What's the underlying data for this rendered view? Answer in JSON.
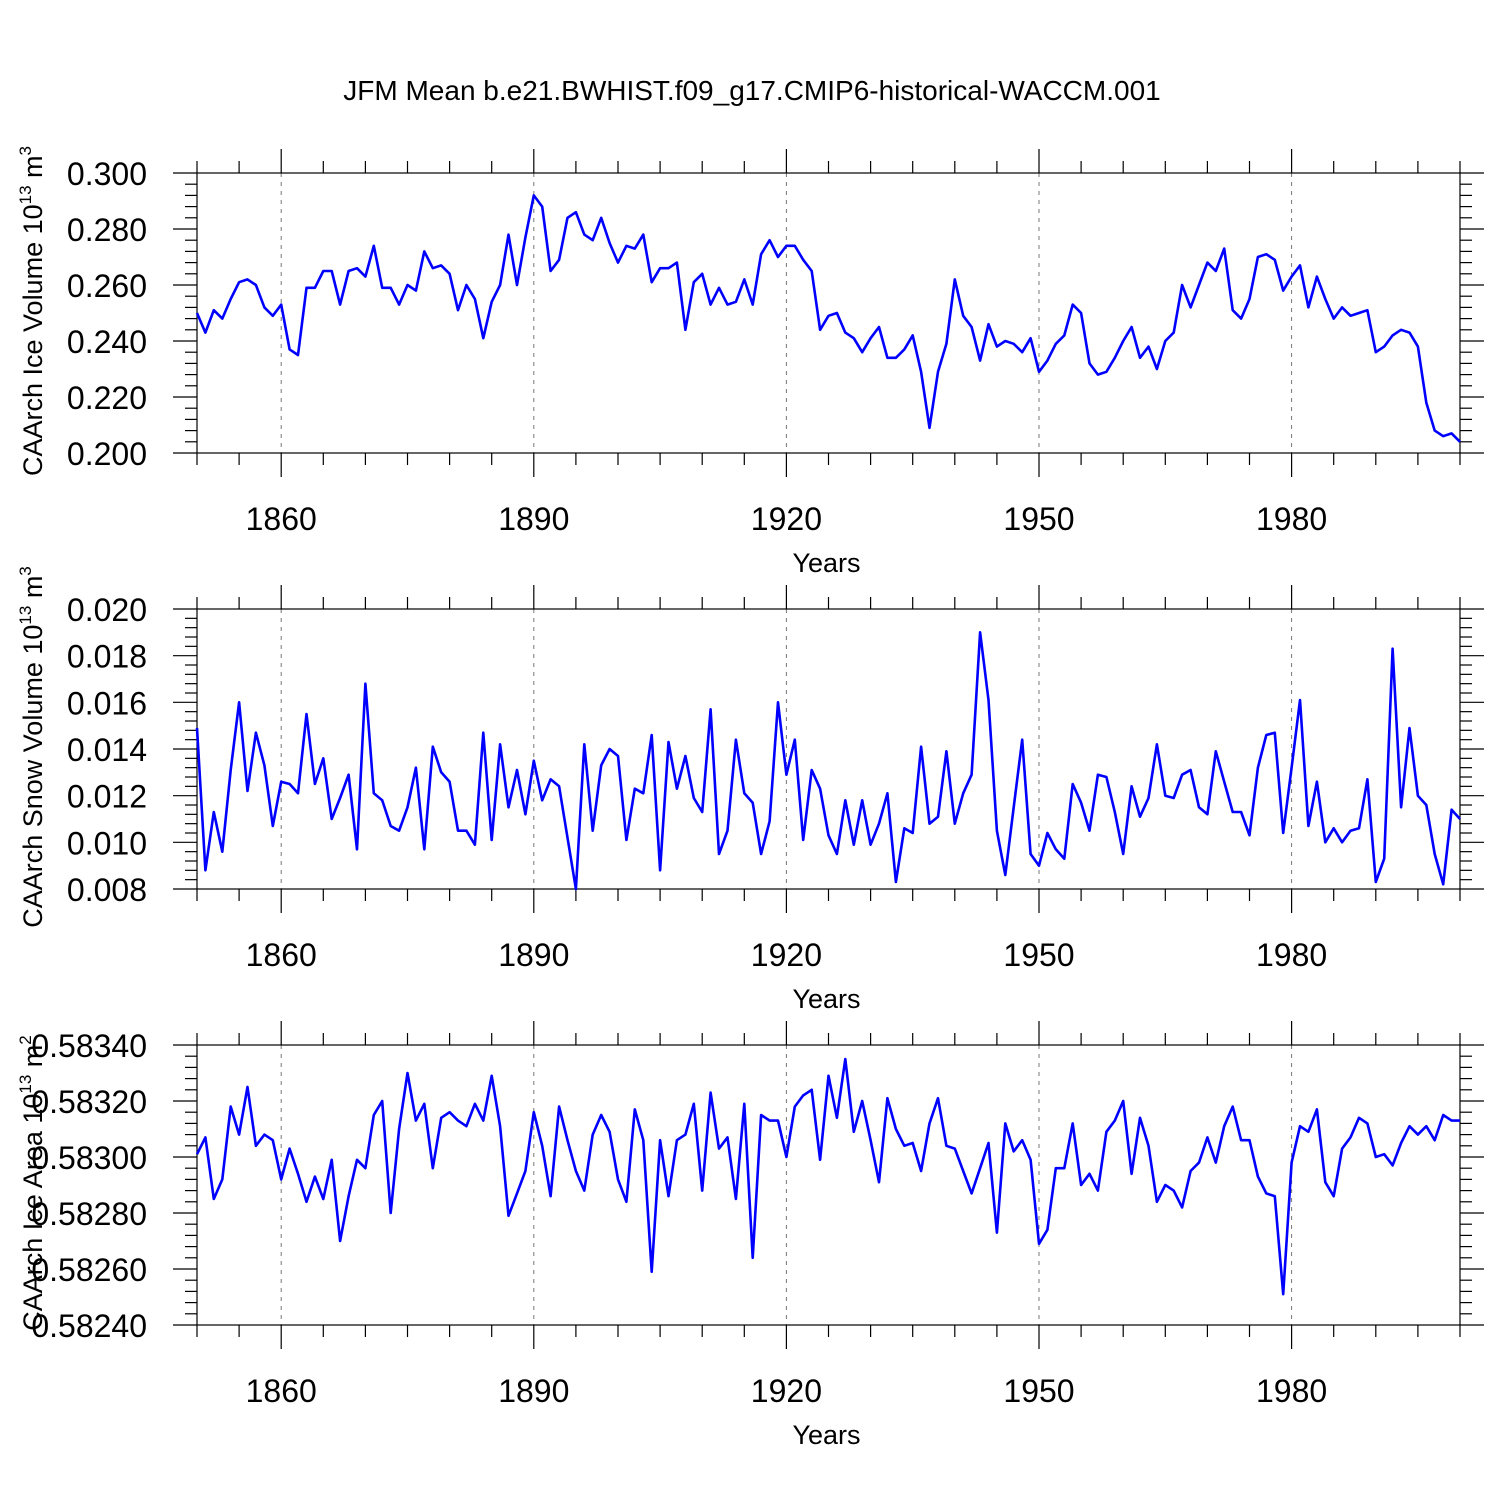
{
  "figure_title": "JFM Mean b.e21.BWHIST.f09_g17.CMIP6-historical-WACCM.001",
  "chart_data": [
    {
      "type": "line",
      "title": "JFM Mean b.e21.BWHIST.f09_g17.CMIP6-historical-WACCM.001",
      "xlabel": "Years",
      "ylabel": {
        "text": "CAArch Ice Volume 10",
        "sup": "13",
        "unit": " m",
        "unit_sup": "3"
      },
      "xlim": [
        1850,
        2000
      ],
      "ylim": [
        0.2,
        0.3
      ],
      "xticks": [
        1860,
        1890,
        1920,
        1950,
        1980
      ],
      "xtick_labels": [
        "1860",
        "1890",
        "1920",
        "1950",
        "1980"
      ],
      "yticks": [
        0.2,
        0.22,
        0.24,
        0.26,
        0.28,
        0.3
      ],
      "ytick_labels": [
        "0.200",
        "0.220",
        "0.240",
        "0.260",
        "0.280",
        "0.300"
      ],
      "x_start": 1850,
      "grid": "dashed at major x ticks",
      "series": [
        {
          "name": "Ice Volume",
          "color": "#0000ff",
          "values": [
            0.25,
            0.243,
            0.251,
            0.248,
            0.255,
            0.261,
            0.262,
            0.26,
            0.252,
            0.249,
            0.253,
            0.237,
            0.235,
            0.259,
            0.259,
            0.265,
            0.265,
            0.253,
            0.265,
            0.266,
            0.263,
            0.274,
            0.259,
            0.259,
            0.253,
            0.26,
            0.258,
            0.272,
            0.266,
            0.267,
            0.264,
            0.251,
            0.26,
            0.255,
            0.241,
            0.254,
            0.26,
            0.278,
            0.26,
            0.277,
            0.292,
            0.288,
            0.265,
            0.269,
            0.284,
            0.286,
            0.278,
            0.276,
            0.284,
            0.275,
            0.268,
            0.274,
            0.273,
            0.278,
            0.261,
            0.266,
            0.266,
            0.268,
            0.244,
            0.261,
            0.264,
            0.253,
            0.259,
            0.253,
            0.254,
            0.262,
            0.253,
            0.271,
            0.276,
            0.27,
            0.274,
            0.274,
            0.269,
            0.265,
            0.244,
            0.249,
            0.25,
            0.243,
            0.241,
            0.236,
            0.241,
            0.245,
            0.234,
            0.234,
            0.237,
            0.242,
            0.229,
            0.209,
            0.229,
            0.239,
            0.262,
            0.249,
            0.245,
            0.233,
            0.246,
            0.238,
            0.24,
            0.239,
            0.236,
            0.241,
            0.229,
            0.233,
            0.239,
            0.242,
            0.253,
            0.25,
            0.232,
            0.228,
            0.229,
            0.234,
            0.24,
            0.245,
            0.234,
            0.238,
            0.23,
            0.24,
            0.243,
            0.26,
            0.252,
            0.26,
            0.268,
            0.265,
            0.273,
            0.251,
            0.248,
            0.255,
            0.27,
            0.271,
            0.269,
            0.258,
            0.263,
            0.267,
            0.252,
            0.263,
            0.255,
            0.248,
            0.252,
            0.249,
            0.25,
            0.251,
            0.236,
            0.238,
            0.242,
            0.244,
            0.243,
            0.238,
            0.218,
            0.208,
            0.206,
            0.207,
            0.204
          ]
        }
      ]
    },
    {
      "type": "line",
      "xlabel": "Years",
      "ylabel": {
        "text": "CAArch Snow Volume 10",
        "sup": "13",
        "unit": " m",
        "unit_sup": "3"
      },
      "xlim": [
        1850,
        2000
      ],
      "ylim": [
        0.008,
        0.02
      ],
      "xticks": [
        1860,
        1890,
        1920,
        1950,
        1980
      ],
      "xtick_labels": [
        "1860",
        "1890",
        "1920",
        "1950",
        "1980"
      ],
      "yticks": [
        0.008,
        0.01,
        0.012,
        0.014,
        0.016,
        0.018,
        0.02
      ],
      "ytick_labels": [
        "0.008",
        "0.010",
        "0.012",
        "0.014",
        "0.016",
        "0.018",
        "0.020"
      ],
      "x_start": 1850,
      "grid": "dashed at major x ticks",
      "series": [
        {
          "name": "Snow Volume",
          "color": "#0000ff",
          "values": [
            0.0149,
            0.0088,
            0.0113,
            0.0096,
            0.0131,
            0.016,
            0.0122,
            0.0147,
            0.0133,
            0.0107,
            0.0126,
            0.0125,
            0.0121,
            0.0155,
            0.0125,
            0.0136,
            0.011,
            0.0119,
            0.0129,
            0.0097,
            0.0168,
            0.0121,
            0.0118,
            0.0107,
            0.0105,
            0.0115,
            0.0132,
            0.0097,
            0.0141,
            0.013,
            0.0126,
            0.0105,
            0.0105,
            0.0099,
            0.0147,
            0.0101,
            0.0142,
            0.0115,
            0.0131,
            0.0112,
            0.0135,
            0.0118,
            0.0127,
            0.0124,
            0.0102,
            0.008,
            0.0142,
            0.0105,
            0.0133,
            0.014,
            0.0137,
            0.0101,
            0.0123,
            0.0121,
            0.0146,
            0.0088,
            0.0143,
            0.0123,
            0.0137,
            0.0119,
            0.0113,
            0.0157,
            0.0095,
            0.0105,
            0.0144,
            0.0121,
            0.0117,
            0.0095,
            0.0109,
            0.016,
            0.0129,
            0.0144,
            0.0101,
            0.0131,
            0.0123,
            0.0103,
            0.0095,
            0.0118,
            0.0099,
            0.0118,
            0.0099,
            0.0108,
            0.0121,
            0.0083,
            0.0106,
            0.0104,
            0.0141,
            0.0108,
            0.0111,
            0.0139,
            0.0108,
            0.0121,
            0.0129,
            0.019,
            0.0161,
            0.0105,
            0.0086,
            0.0115,
            0.0144,
            0.0095,
            0.009,
            0.0104,
            0.0097,
            0.0093,
            0.0125,
            0.0117,
            0.0105,
            0.0129,
            0.0128,
            0.0113,
            0.0095,
            0.0124,
            0.0111,
            0.0119,
            0.0142,
            0.012,
            0.0119,
            0.0129,
            0.0131,
            0.0115,
            0.0112,
            0.0139,
            0.0126,
            0.0113,
            0.0113,
            0.0103,
            0.0132,
            0.0146,
            0.0147,
            0.0104,
            0.0132,
            0.0161,
            0.0107,
            0.0126,
            0.01,
            0.0106,
            0.01,
            0.0105,
            0.0106,
            0.0127,
            0.0083,
            0.0093,
            0.0183,
            0.0115,
            0.0149,
            0.012,
            0.0116,
            0.0095,
            0.0082,
            0.0114,
            0.011
          ]
        }
      ]
    },
    {
      "type": "line",
      "xlabel": "Years",
      "ylabel": {
        "text": "CAArch Ice Area 10",
        "sup": "13",
        "unit": " m",
        "unit_sup": "2"
      },
      "xlim": [
        1850,
        2000
      ],
      "ylim": [
        0.5824,
        0.5834
      ],
      "xticks": [
        1860,
        1890,
        1920,
        1950,
        1980
      ],
      "xtick_labels": [
        "1860",
        "1890",
        "1920",
        "1950",
        "1980"
      ],
      "yticks": [
        0.5824,
        0.5826,
        0.5828,
        0.583,
        0.5832,
        0.5834
      ],
      "ytick_labels": [
        "0.58240",
        "0.58260",
        "0.58280",
        "0.58300",
        "0.58320",
        "0.58340"
      ],
      "x_start": 1850,
      "grid": "dashed at major x ticks",
      "series": [
        {
          "name": "Ice Area",
          "color": "#0000ff",
          "values": [
            0.58301,
            0.58307,
            0.58285,
            0.58292,
            0.58318,
            0.58308,
            0.58325,
            0.58304,
            0.58308,
            0.58306,
            0.58292,
            0.58303,
            0.58294,
            0.58284,
            0.58293,
            0.58285,
            0.58299,
            0.5827,
            0.58286,
            0.58299,
            0.58296,
            0.58315,
            0.5832,
            0.5828,
            0.5831,
            0.5833,
            0.58313,
            0.58319,
            0.58296,
            0.58314,
            0.58316,
            0.58313,
            0.58311,
            0.58319,
            0.58313,
            0.58329,
            0.58311,
            0.58279,
            0.58287,
            0.58295,
            0.58316,
            0.58304,
            0.58286,
            0.58318,
            0.58306,
            0.58295,
            0.58288,
            0.58308,
            0.58315,
            0.58309,
            0.58292,
            0.58284,
            0.58317,
            0.58306,
            0.58259,
            0.58306,
            0.58286,
            0.58306,
            0.58308,
            0.58319,
            0.58288,
            0.58323,
            0.58303,
            0.58307,
            0.58285,
            0.58319,
            0.58264,
            0.58315,
            0.58313,
            0.58313,
            0.583,
            0.58318,
            0.58322,
            0.58324,
            0.58299,
            0.58329,
            0.58314,
            0.58335,
            0.58309,
            0.5832,
            0.58306,
            0.58291,
            0.58321,
            0.5831,
            0.58304,
            0.58305,
            0.58295,
            0.58312,
            0.58321,
            0.58304,
            0.58303,
            0.58295,
            0.58287,
            0.58296,
            0.58305,
            0.58273,
            0.58312,
            0.58302,
            0.58306,
            0.58299,
            0.58269,
            0.58274,
            0.58296,
            0.58296,
            0.58312,
            0.5829,
            0.58294,
            0.58288,
            0.58309,
            0.58313,
            0.5832,
            0.58294,
            0.58314,
            0.58304,
            0.58284,
            0.5829,
            0.58288,
            0.58282,
            0.58295,
            0.58298,
            0.58307,
            0.58298,
            0.58311,
            0.58318,
            0.58306,
            0.58306,
            0.58293,
            0.58287,
            0.58286,
            0.58251,
            0.58298,
            0.58311,
            0.58309,
            0.58317,
            0.58291,
            0.58286,
            0.58303,
            0.58307,
            0.58314,
            0.58312,
            0.583,
            0.58301,
            0.58297,
            0.58305,
            0.58311,
            0.58308,
            0.58311,
            0.58306,
            0.58315,
            0.58313,
            0.58313
          ]
        }
      ]
    }
  ]
}
